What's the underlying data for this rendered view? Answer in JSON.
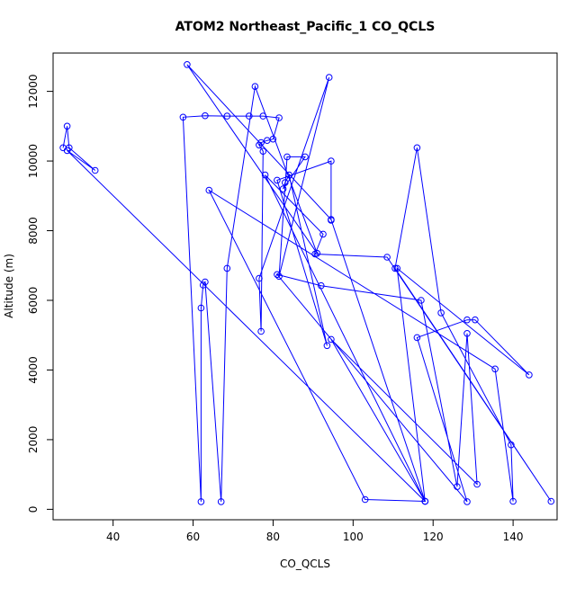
{
  "chart_data": {
    "type": "line",
    "title": "ATOM2 Northeast_Pacific_1 CO_QCLS",
    "xlabel": "CO_QCLS",
    "ylabel": "Altitude (m)",
    "xlim": [
      25,
      151
    ],
    "ylim": [
      -300,
      13100
    ],
    "x_ticks": [
      40,
      60,
      80,
      100,
      120,
      140
    ],
    "y_ticks": [
      0,
      2000,
      4000,
      6000,
      8000,
      10000,
      12000
    ],
    "grid": false,
    "line_color": "#0000ff",
    "series": [
      {
        "points": [
          [
            27.5,
            10380
          ],
          [
            28.5,
            11000
          ],
          [
            29,
            10380
          ],
          [
            35.5,
            9730
          ],
          [
            28.5,
            10300
          ],
          [
            118,
            230
          ],
          [
            103,
            280
          ],
          [
            64,
            9160
          ],
          [
            135.5,
            4030
          ],
          [
            140,
            230
          ],
          [
            139.5,
            1850
          ],
          [
            122,
            5640
          ],
          [
            116,
            10380
          ],
          [
            110.5,
            6920
          ],
          [
            149.5,
            230
          ],
          [
            108.5,
            7240
          ],
          [
            90.5,
            7330
          ],
          [
            92.5,
            7900
          ],
          [
            78,
            9600
          ],
          [
            118,
            230
          ],
          [
            94.5,
            4880
          ],
          [
            131,
            720
          ],
          [
            128.5,
            5050
          ],
          [
            126,
            650
          ],
          [
            117,
            6000
          ],
          [
            92,
            6420
          ],
          [
            81,
            6740
          ],
          [
            128.5,
            220
          ],
          [
            116,
            4930
          ],
          [
            128.5,
            5440
          ],
          [
            130.5,
            5440
          ],
          [
            144,
            3860
          ],
          [
            111,
            6920
          ],
          [
            118,
            230
          ],
          [
            94.5,
            8320
          ],
          [
            58.5,
            12770
          ],
          [
            91,
            7350
          ],
          [
            75.5,
            12140
          ],
          [
            68.5,
            6920
          ],
          [
            67,
            220
          ],
          [
            63,
            6530
          ],
          [
            62.5,
            6440
          ],
          [
            62,
            5780
          ],
          [
            62,
            220
          ],
          [
            57.5,
            11260
          ],
          [
            63,
            11300
          ],
          [
            68.5,
            11290
          ],
          [
            74,
            11290
          ],
          [
            77.5,
            11290
          ],
          [
            81.5,
            11240
          ],
          [
            80,
            10630
          ],
          [
            78.5,
            10590
          ],
          [
            77,
            10530
          ],
          [
            76.5,
            10460
          ],
          [
            77.5,
            10280
          ],
          [
            77,
            5110
          ],
          [
            76.5,
            6630
          ],
          [
            94,
            12400
          ],
          [
            81.5,
            6690
          ],
          [
            83.5,
            10120
          ],
          [
            88,
            10120
          ],
          [
            82.5,
            9200
          ],
          [
            83,
            9380
          ],
          [
            84,
            9600
          ],
          [
            93.5,
            4700
          ],
          [
            81,
            9450
          ],
          [
            94.5,
            10000
          ],
          [
            94.5,
            8300
          ]
        ]
      }
    ]
  }
}
